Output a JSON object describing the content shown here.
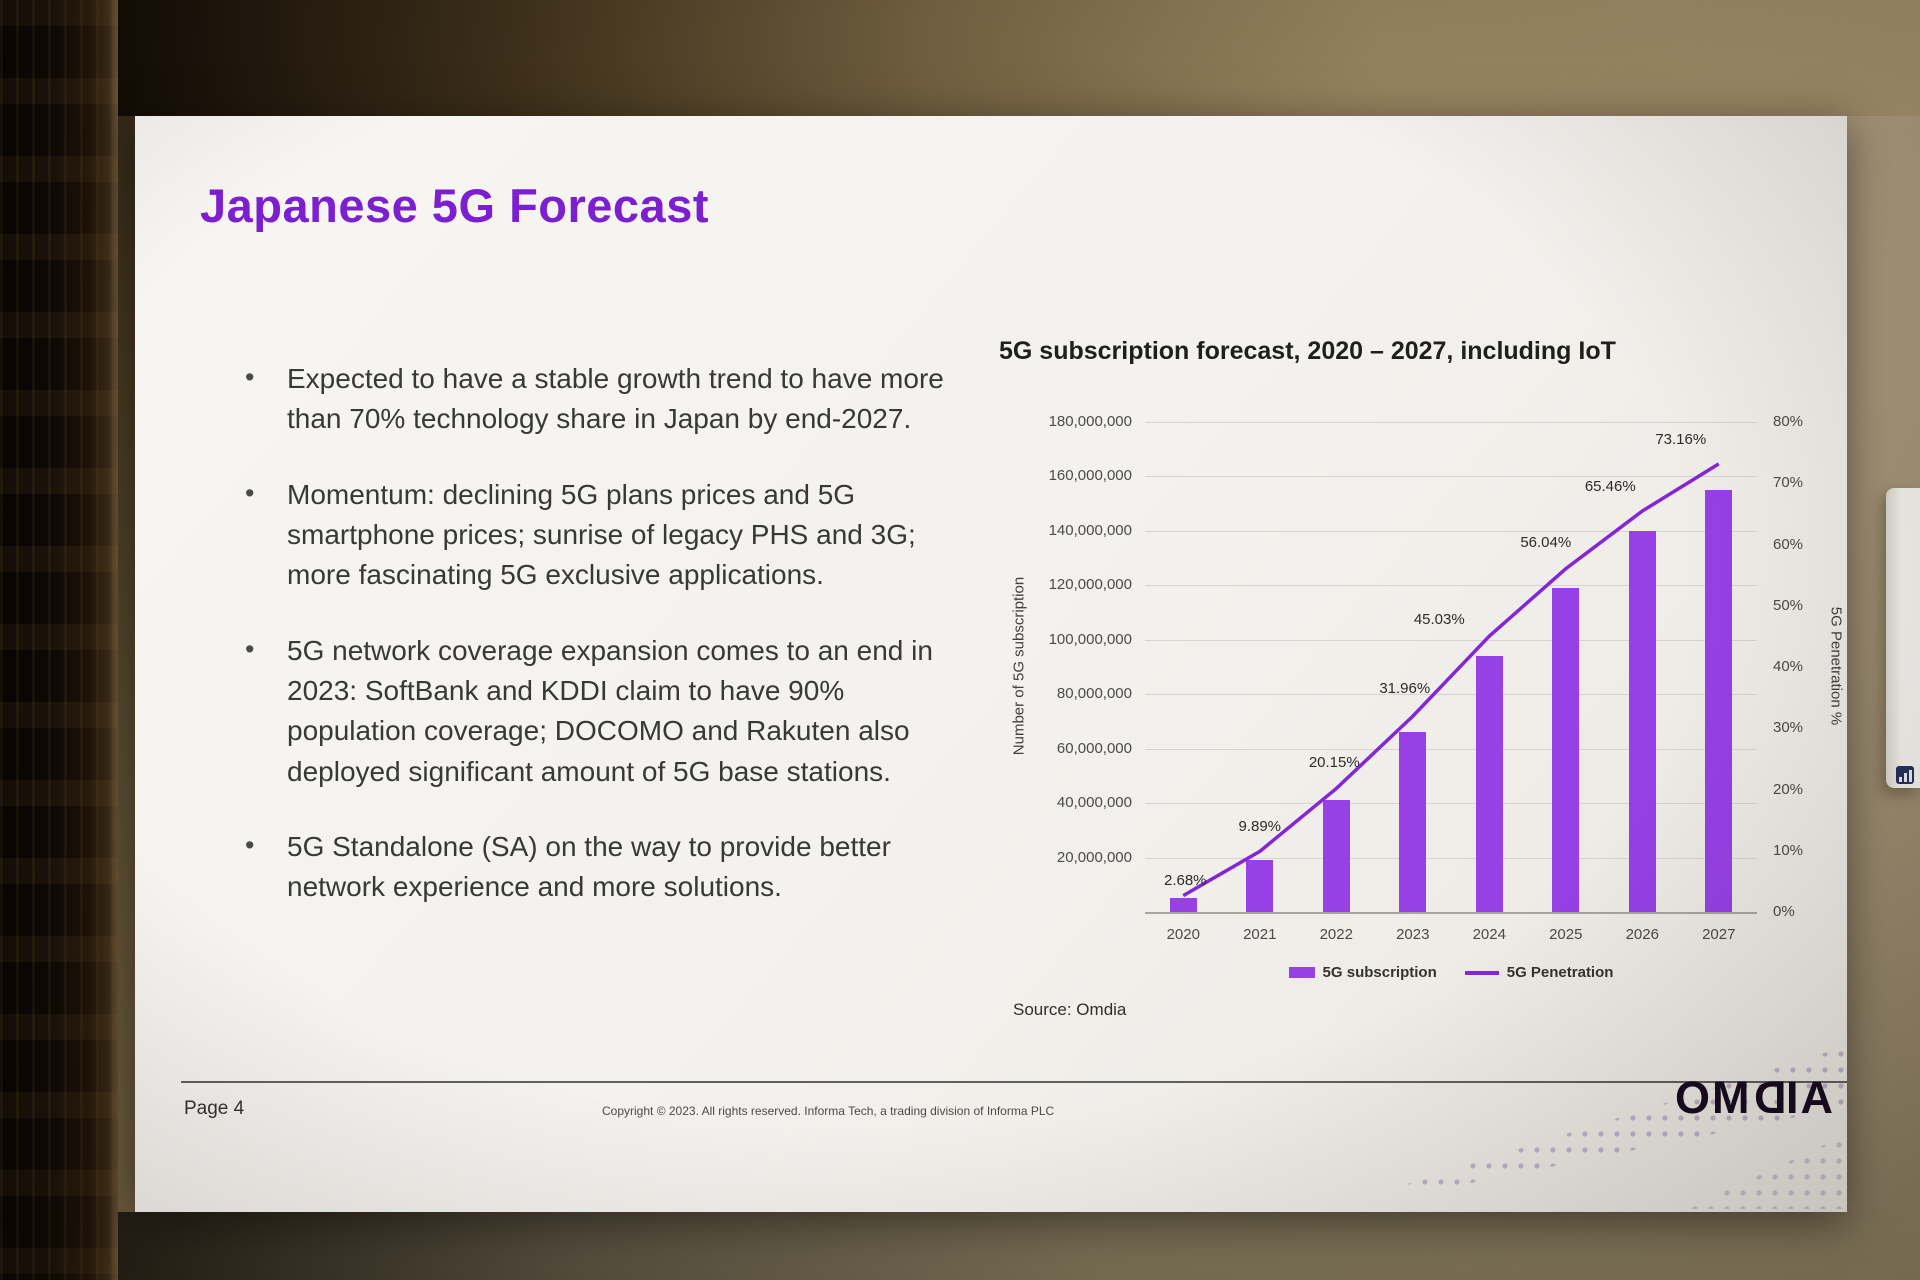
{
  "slide": {
    "title": "Japanese 5G Forecast",
    "accent_color": "#7c1fd1",
    "bullets": [
      "Expected to have a stable growth trend to have more than 70% technology share in Japan by end-2027.",
      "Momentum: declining 5G plans prices and 5G smartphone prices; sunrise of legacy PHS and 3G; more fascinating 5G exclusive applications.",
      "5G network coverage expansion comes to an end in 2023: SoftBank and KDDI claim to have 90% population coverage; DOCOMO and Rakuten also deployed significant amount of 5G base stations.",
      "5G Standalone (SA) on the way to provide better network experience and more solutions."
    ],
    "footer": {
      "page_label": "Page 4",
      "copyright": "Copyright © 2023. All rights reserved. Informa Tech, a trading division of Informa PLC",
      "logo_letters": [
        "O",
        "M",
        "D",
        "I",
        "A"
      ]
    }
  },
  "chart_data": {
    "type": "bar",
    "title": "5G subscription forecast, 2020 – 2027, including IoT",
    "categories": [
      "2020",
      "2021",
      "2022",
      "2023",
      "2024",
      "2025",
      "2026",
      "2027"
    ],
    "series": [
      {
        "name": "5G subscription",
        "type": "bar",
        "axis": "left",
        "values": [
          5000000,
          19000000,
          41000000,
          66000000,
          94000000,
          119000000,
          140000000,
          155000000
        ]
      },
      {
        "name": "5G Penetration",
        "type": "line",
        "axis": "right",
        "unit": "%",
        "values": [
          2.68,
          9.89,
          20.15,
          31.96,
          45.03,
          56.04,
          65.46,
          73.16
        ]
      }
    ],
    "data_labels": [
      "2.68%",
      "9.89%",
      "20.15%",
      "31.96%",
      "45.03%",
      "56.04%",
      "65.46%",
      "73.16%"
    ],
    "left_axis": {
      "label": "Number of 5G subscription",
      "min": 0,
      "max": 180000000,
      "step": 20000000,
      "tick_labels": [
        "180,000,000",
        "160,000,000",
        "140,000,000",
        "120,000,000",
        "100,000,000",
        "80,000,000",
        "60,000,000",
        "40,000,000",
        "20,000,000"
      ]
    },
    "right_axis": {
      "label": "5G Penetration %",
      "min": 0,
      "max": 80,
      "step": 10,
      "tick_labels": [
        "80%",
        "70%",
        "60%",
        "50%",
        "40%",
        "30%",
        "20%",
        "10%",
        "0%"
      ]
    },
    "legend": [
      {
        "label": "5G subscription",
        "marker": "bar"
      },
      {
        "label": "5G Penetration",
        "marker": "line"
      }
    ],
    "legend_position": "bottom",
    "grid": true,
    "source": "Source: Omdia",
    "colors": {
      "bar": "#9640e6",
      "line": "#8426d8"
    }
  }
}
